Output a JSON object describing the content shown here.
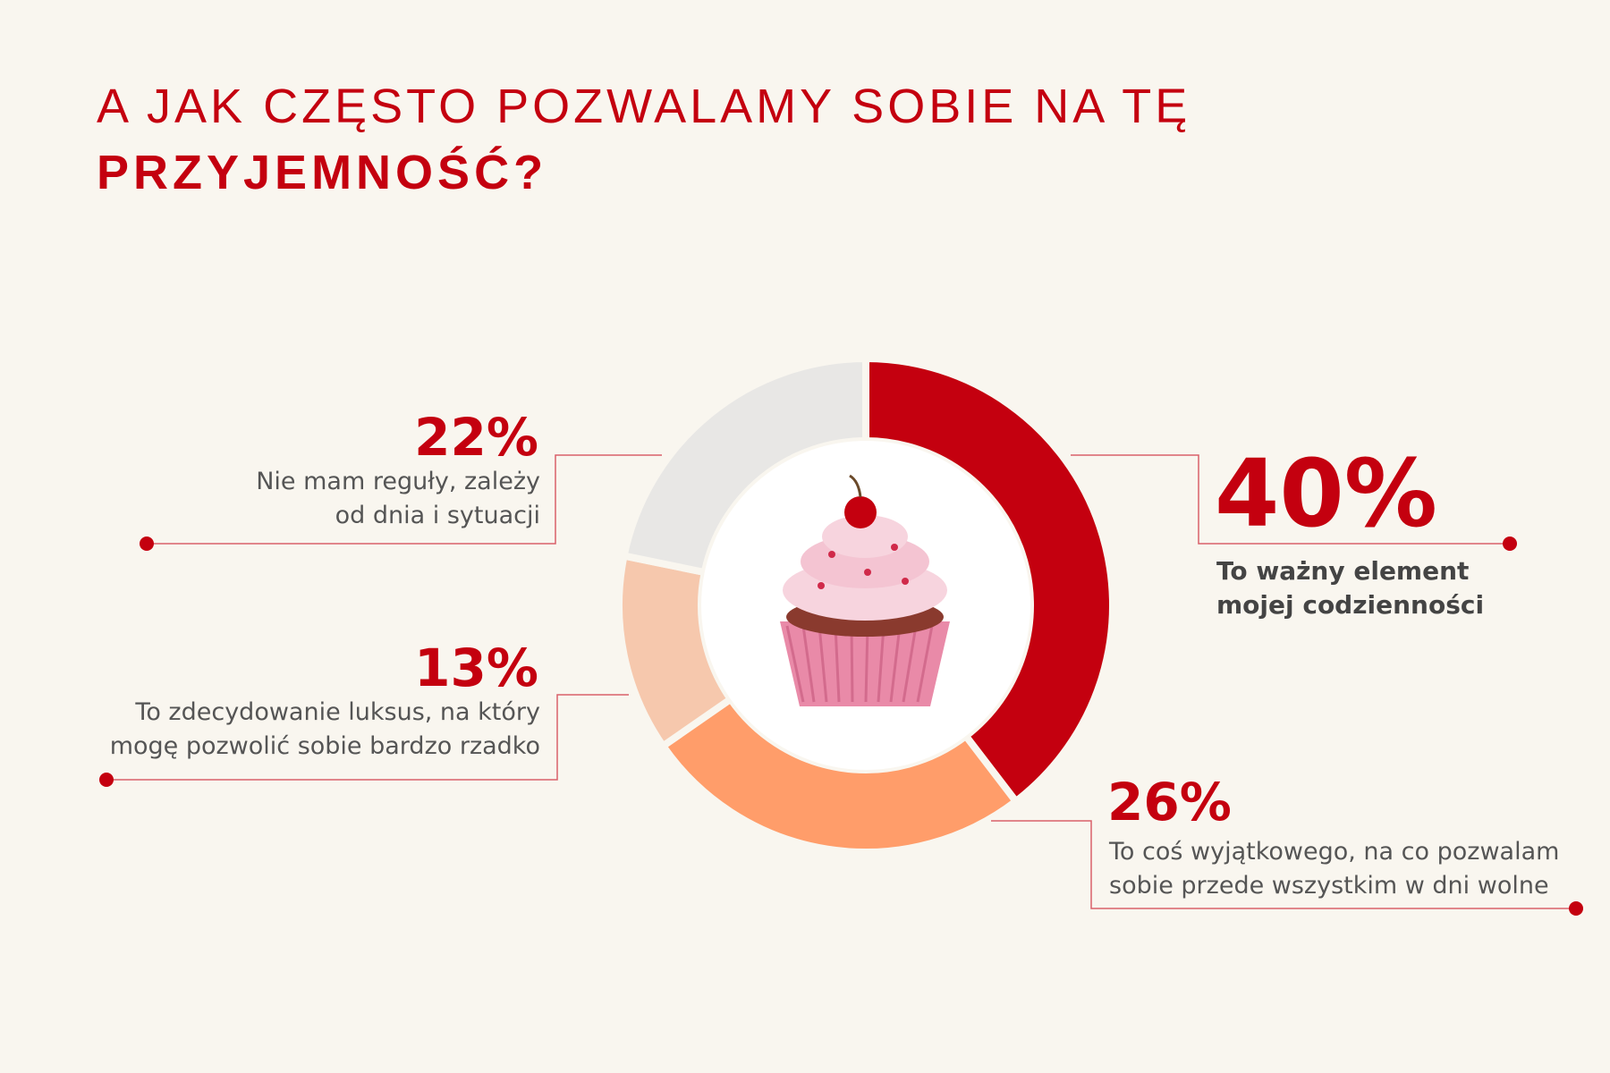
{
  "title_line1": "A JAK CZĘSTO POZWALAMY SOBIE NA TĘ",
  "title_line2": "PRZYJEMNOŚĆ?",
  "chart_data": {
    "type": "pie",
    "donut": true,
    "categories": [
      "To ważny element\nmojej codzienności",
      "To coś wyjątkowego, na co pozwalam\nsobie przede wszystkim w dni wolne",
      "To zdecydowanie luksus, na który\nmogę pozwolić sobie bardzo rzadko",
      "Nie mam reguły, zależy\nod dnia i sytuacji"
    ],
    "values": [
      40,
      26,
      13,
      22
    ],
    "value_labels": [
      "40%",
      "26%",
      "13%",
      "22%"
    ],
    "colors": [
      "#c4000f",
      "#ff9d6a",
      "#f6c8ad",
      "#e8e7e5"
    ]
  }
}
